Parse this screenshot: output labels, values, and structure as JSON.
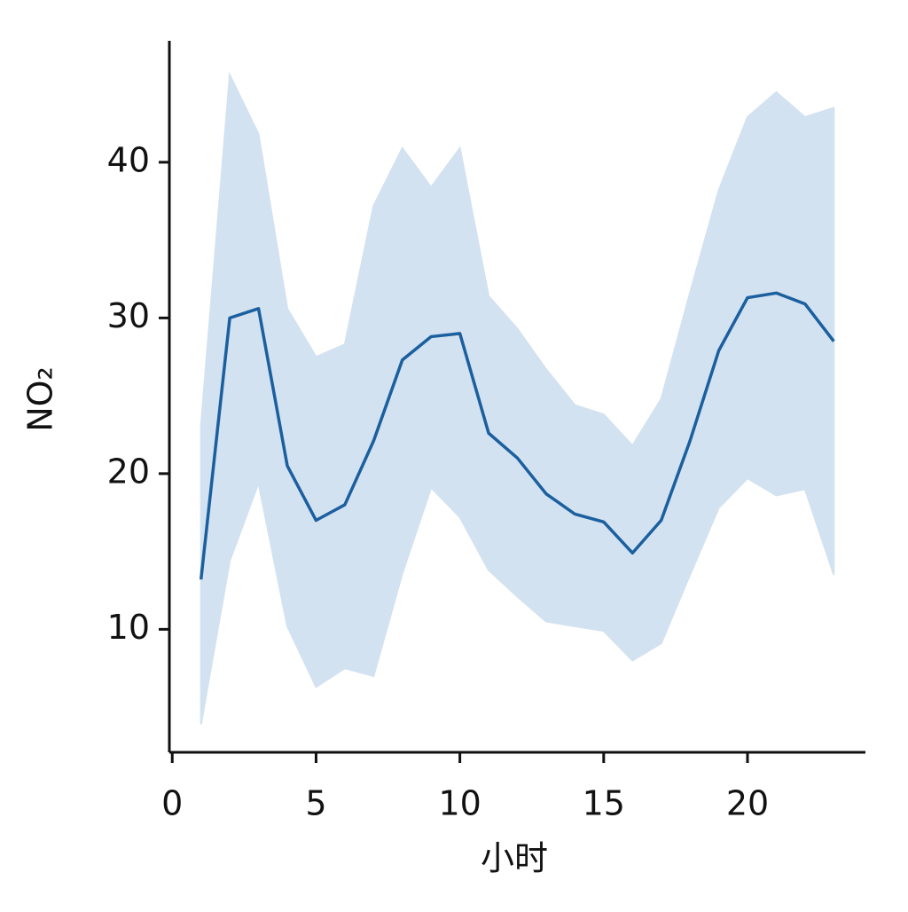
{
  "chart_data": {
    "type": "line",
    "x_label": "小时",
    "y_label": "NO₂",
    "x": [
      1,
      2,
      3,
      4,
      5,
      6,
      7,
      8,
      9,
      10,
      11,
      12,
      13,
      14,
      15,
      16,
      17,
      18,
      19,
      20,
      21,
      22,
      23
    ],
    "series": [
      {
        "color": "#1b5f9f",
        "band_color": "#d3e2f0",
        "values": [
          13.2,
          30.0,
          30.6,
          20.5,
          17.0,
          18.0,
          22.1,
          27.3,
          28.8,
          29.0,
          22.6,
          21.0,
          18.7,
          17.4,
          16.9,
          14.9,
          17.0,
          22.1,
          27.9,
          31.3,
          31.6,
          30.9,
          28.5
        ],
        "upper": [
          23.1,
          45.6,
          41.8,
          30.6,
          27.5,
          28.3,
          37.2,
          40.9,
          38.4,
          40.9,
          31.4,
          29.3,
          26.7,
          24.4,
          23.8,
          21.8,
          24.8,
          31.6,
          38.2,
          42.9,
          44.5,
          42.9,
          43.5
        ],
        "lower": [
          3.9,
          14.4,
          19.4,
          10.2,
          6.3,
          7.5,
          7.0,
          13.6,
          19.1,
          17.2,
          13.8,
          12.1,
          10.5,
          10.2,
          9.9,
          8.0,
          9.1,
          13.5,
          17.8,
          19.7,
          18.6,
          19.0,
          13.5
        ]
      }
    ],
    "xlim": [
      -0.1,
      24.1
    ],
    "xticks": [
      0,
      5,
      10,
      15,
      20
    ],
    "ylim": [
      2.1,
      47.8
    ],
    "yticks": [
      10,
      20,
      30,
      40
    ]
  }
}
